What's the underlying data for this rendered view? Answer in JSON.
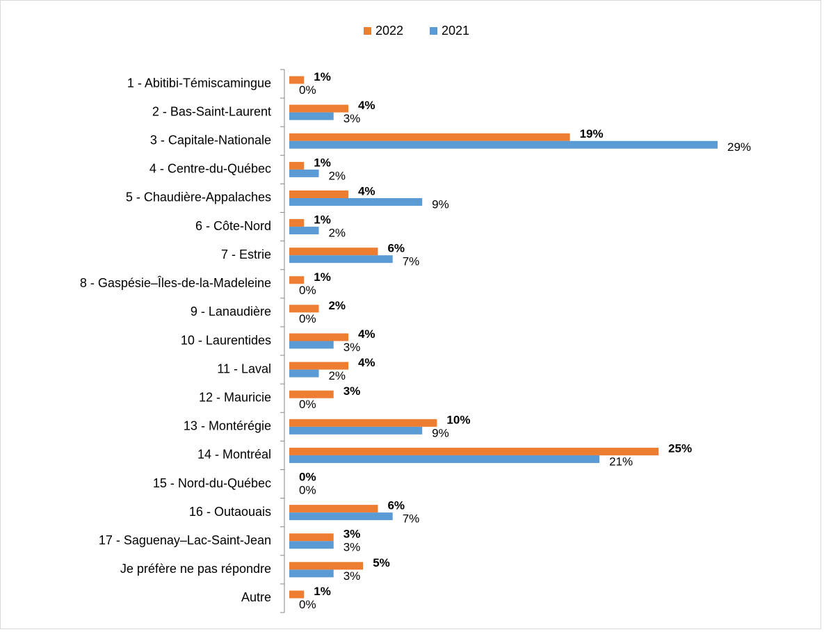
{
  "chart_data": {
    "type": "bar",
    "orientation": "horizontal",
    "categories": [
      "1 - Abitibi-Témiscamingue",
      "2 - Bas-Saint-Laurent",
      "3 - Capitale-Nationale",
      "4 - Centre-du-Québec",
      "5 - Chaudière-Appalaches",
      "6 - Côte-Nord",
      "7 - Estrie",
      "8 - Gaspésie–Îles-de-la-Madeleine",
      "9 - Lanaudière",
      "10 - Laurentides",
      "11 - Laval",
      "12 - Mauricie",
      "13 - Montérégie",
      "14 - Montréal",
      "15 - Nord-du-Québec",
      "16 - Outaouais",
      "17 - Saguenay–Lac-Saint-Jean",
      "Je préfère ne pas répondre",
      "Autre"
    ],
    "series": [
      {
        "name": "2022",
        "color": "#ed7d31",
        "values": [
          1,
          4,
          19,
          1,
          4,
          1,
          6,
          1,
          2,
          4,
          4,
          3,
          10,
          25,
          0,
          6,
          3,
          5,
          1
        ],
        "value_labels": [
          "1%",
          "4%",
          "19%",
          "1%",
          "4%",
          "1%",
          "6%",
          "1%",
          "2%",
          "4%",
          "4%",
          "3%",
          "10%",
          "25%",
          "0%",
          "6%",
          "3%",
          "5%",
          "1%"
        ]
      },
      {
        "name": "2021",
        "color": "#5b9bd5",
        "values": [
          0,
          3,
          29,
          2,
          9,
          2,
          7,
          0,
          0,
          3,
          2,
          0,
          9,
          21,
          0,
          7,
          3,
          3,
          0
        ],
        "value_labels": [
          "0%",
          "3%",
          "29%",
          "2%",
          "9%",
          "2%",
          "7%",
          "0%",
          "0%",
          "3%",
          "2%",
          "0%",
          "9%",
          "21%",
          "0%",
          "7%",
          "3%",
          "3%",
          "0%"
        ]
      }
    ],
    "legend": "top"
  }
}
